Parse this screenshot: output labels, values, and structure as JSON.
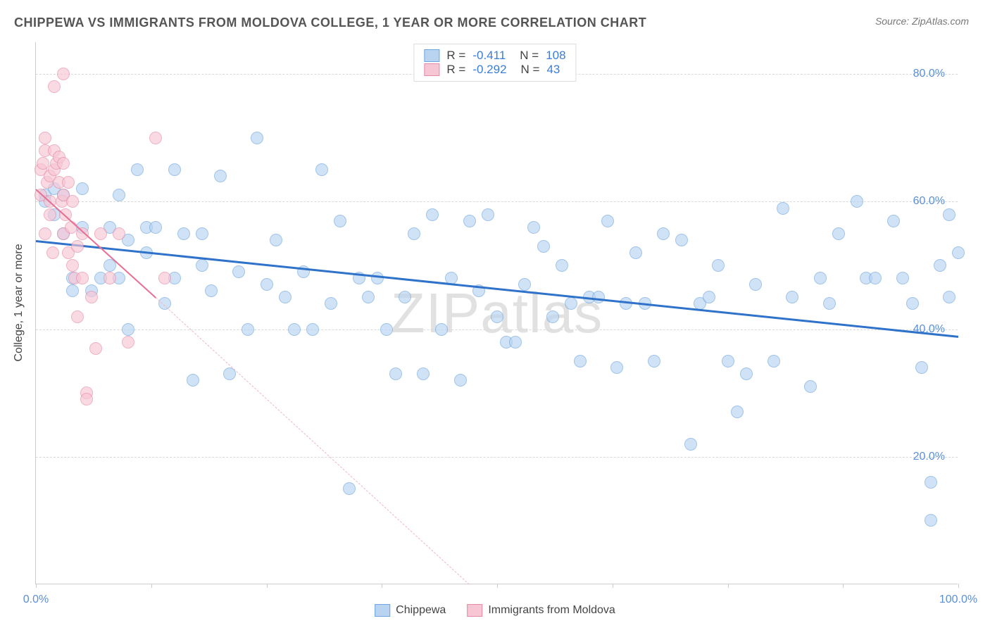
{
  "title": "CHIPPEWA VS IMMIGRANTS FROM MOLDOVA COLLEGE, 1 YEAR OR MORE CORRELATION CHART",
  "source": "Source: ZipAtlas.com",
  "ylabel": "College, 1 year or more",
  "watermark": "ZIPatlas",
  "chart": {
    "type": "scatter",
    "xlim": [
      0,
      100
    ],
    "ylim": [
      0,
      85
    ],
    "y_ticks": [
      20,
      40,
      60,
      80
    ],
    "y_tick_labels": [
      "20.0%",
      "40.0%",
      "60.0%",
      "80.0%"
    ],
    "x_ticks": [
      0,
      12.5,
      25,
      37.5,
      50,
      62.5,
      75,
      87.5,
      100
    ],
    "x_tick_labels_shown": {
      "0": "0.0%",
      "100": "100.0%"
    },
    "background_color": "#ffffff",
    "grid_color": "#d9d9d9",
    "axis_color": "#cccccc",
    "point_radius": 9,
    "series": {
      "chippewa": {
        "label": "Chippewa",
        "fill": "#b8d4f0",
        "stroke": "#6ea5e0",
        "fill_opacity": 0.65,
        "R": "-0.411",
        "N": "108",
        "trend": {
          "x1": 0,
          "y1": 54,
          "x2": 100,
          "y2": 39,
          "color": "#2f72c9",
          "width": 3,
          "dash": "solid"
        },
        "points": [
          [
            1,
            61
          ],
          [
            1,
            60
          ],
          [
            2,
            62
          ],
          [
            2,
            58
          ],
          [
            3,
            61
          ],
          [
            3,
            55
          ],
          [
            4,
            48
          ],
          [
            4,
            46
          ],
          [
            5,
            56
          ],
          [
            5,
            62
          ],
          [
            6,
            46
          ],
          [
            7,
            48
          ],
          [
            8,
            56
          ],
          [
            8,
            50
          ],
          [
            9,
            61
          ],
          [
            9,
            48
          ],
          [
            10,
            54
          ],
          [
            10,
            40
          ],
          [
            11,
            65
          ],
          [
            12,
            56
          ],
          [
            12,
            52
          ],
          [
            13,
            56
          ],
          [
            14,
            44
          ],
          [
            15,
            48
          ],
          [
            15,
            65
          ],
          [
            16,
            55
          ],
          [
            17,
            32
          ],
          [
            18,
            55
          ],
          [
            18,
            50
          ],
          [
            19,
            46
          ],
          [
            20,
            64
          ],
          [
            21,
            33
          ],
          [
            22,
            49
          ],
          [
            23,
            40
          ],
          [
            24,
            70
          ],
          [
            25,
            47
          ],
          [
            26,
            54
          ],
          [
            27,
            45
          ],
          [
            28,
            40
          ],
          [
            29,
            49
          ],
          [
            30,
            40
          ],
          [
            31,
            65
          ],
          [
            32,
            44
          ],
          [
            33,
            57
          ],
          [
            34,
            15
          ],
          [
            35,
            48
          ],
          [
            36,
            45
          ],
          [
            37,
            48
          ],
          [
            38,
            40
          ],
          [
            39,
            33
          ],
          [
            40,
            45
          ],
          [
            41,
            55
          ],
          [
            42,
            33
          ],
          [
            43,
            58
          ],
          [
            44,
            40
          ],
          [
            45,
            48
          ],
          [
            46,
            32
          ],
          [
            47,
            57
          ],
          [
            48,
            46
          ],
          [
            49,
            58
          ],
          [
            50,
            42
          ],
          [
            51,
            38
          ],
          [
            52,
            38
          ],
          [
            53,
            47
          ],
          [
            54,
            56
          ],
          [
            55,
            53
          ],
          [
            56,
            42
          ],
          [
            57,
            50
          ],
          [
            58,
            44
          ],
          [
            59,
            35
          ],
          [
            60,
            45
          ],
          [
            61,
            45
          ],
          [
            62,
            57
          ],
          [
            63,
            34
          ],
          [
            64,
            44
          ],
          [
            65,
            52
          ],
          [
            66,
            44
          ],
          [
            67,
            35
          ],
          [
            68,
            55
          ],
          [
            70,
            54
          ],
          [
            71,
            22
          ],
          [
            72,
            44
          ],
          [
            73,
            45
          ],
          [
            74,
            50
          ],
          [
            75,
            35
          ],
          [
            76,
            27
          ],
          [
            77,
            33
          ],
          [
            78,
            47
          ],
          [
            80,
            35
          ],
          [
            81,
            59
          ],
          [
            82,
            45
          ],
          [
            84,
            31
          ],
          [
            85,
            48
          ],
          [
            86,
            44
          ],
          [
            87,
            55
          ],
          [
            89,
            60
          ],
          [
            90,
            48
          ],
          [
            91,
            48
          ],
          [
            93,
            57
          ],
          [
            94,
            48
          ],
          [
            95,
            44
          ],
          [
            96,
            34
          ],
          [
            97,
            16
          ],
          [
            97,
            10
          ],
          [
            98,
            50
          ],
          [
            99,
            45
          ],
          [
            99,
            58
          ],
          [
            100,
            52
          ]
        ]
      },
      "moldova": {
        "label": "Immigrants from Moldova",
        "fill": "#f7c6d4",
        "stroke": "#e88aa6",
        "fill_opacity": 0.65,
        "R": "-0.292",
        "N": "43",
        "trend_solid": {
          "x1": 0,
          "y1": 62,
          "x2": 13,
          "y2": 45,
          "color": "#e86f93",
          "width": 2
        },
        "trend_dash": {
          "x1": 13,
          "y1": 45,
          "x2": 47,
          "y2": 0,
          "color": "#f2b4c5",
          "width": 1
        },
        "points": [
          [
            0.5,
            61
          ],
          [
            0.5,
            65
          ],
          [
            0.8,
            66
          ],
          [
            1,
            55
          ],
          [
            1,
            68
          ],
          [
            1,
            70
          ],
          [
            1.2,
            63
          ],
          [
            1.5,
            60
          ],
          [
            1.5,
            64
          ],
          [
            1.5,
            58
          ],
          [
            1.8,
            52
          ],
          [
            2,
            65
          ],
          [
            2,
            68
          ],
          [
            2,
            78
          ],
          [
            2.2,
            66
          ],
          [
            2.5,
            67
          ],
          [
            2.5,
            63
          ],
          [
            2.8,
            60
          ],
          [
            3,
            55
          ],
          [
            3,
            61
          ],
          [
            3,
            66
          ],
          [
            3,
            80
          ],
          [
            3.2,
            58
          ],
          [
            3.5,
            52
          ],
          [
            3.5,
            63
          ],
          [
            3.8,
            56
          ],
          [
            4,
            50
          ],
          [
            4,
            60
          ],
          [
            4.2,
            48
          ],
          [
            4.5,
            53
          ],
          [
            4.5,
            42
          ],
          [
            5,
            55
          ],
          [
            5,
            48
          ],
          [
            5.5,
            30
          ],
          [
            5.5,
            29
          ],
          [
            6,
            45
          ],
          [
            6.5,
            37
          ],
          [
            7,
            55
          ],
          [
            8,
            48
          ],
          [
            9,
            55
          ],
          [
            10,
            38
          ],
          [
            13,
            70
          ],
          [
            14,
            48
          ]
        ]
      }
    }
  },
  "legend_top": {
    "R_label": "R =",
    "N_label": "N ="
  },
  "colors": {
    "title": "#555555",
    "source": "#777777",
    "axis_label": "#444444",
    "tick_label": "#5b8fd6"
  }
}
